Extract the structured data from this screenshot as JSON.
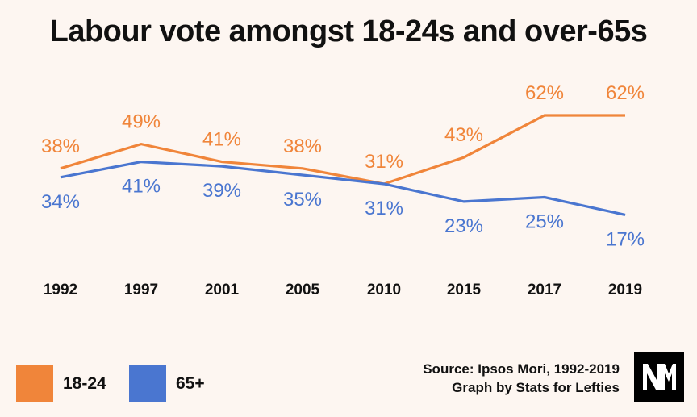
{
  "title": "Labour vote amongst 18-24s and over-65s",
  "chart_data": {
    "type": "line",
    "title": "Labour vote amongst 18-24s and over-65s",
    "categories": [
      "1992",
      "1997",
      "2001",
      "2005",
      "2010",
      "2015",
      "2017",
      "2019"
    ],
    "series": [
      {
        "name": "18-24",
        "color": "#f0853a",
        "values": [
          38,
          49,
          41,
          38,
          31,
          43,
          62,
          62
        ],
        "labels": [
          "38%",
          "49%",
          "41%",
          "38%",
          "31%",
          "43%",
          "62%",
          "62%"
        ]
      },
      {
        "name": "65+",
        "color": "#4a76d0",
        "values": [
          34,
          41,
          39,
          35,
          31,
          23,
          25,
          17
        ],
        "labels": [
          "34%",
          "41%",
          "39%",
          "35%",
          "31%",
          "23%",
          "25%",
          "17%"
        ]
      }
    ],
    "xlabel": "",
    "ylabel": "",
    "ylim": [
      0,
      70
    ],
    "grid": false,
    "legend": "bottom-left"
  },
  "legend": [
    {
      "label": "18-24",
      "color": "#f0853a"
    },
    {
      "label": "65+",
      "color": "#4a76d0"
    }
  ],
  "source": {
    "line1": "Source: Ipsos Mori, 1992-2019",
    "line2": "Graph by Stats for Lefties"
  },
  "logo_icon": "nm-logo-icon"
}
